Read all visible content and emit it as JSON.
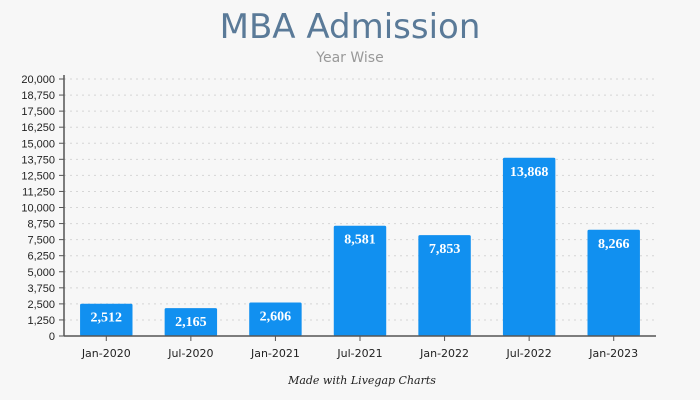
{
  "chart_data": {
    "type": "bar",
    "title": "MBA Admission",
    "subtitle": "Year Wise",
    "categories": [
      "Jan-2020",
      "Jul-2020",
      "Jan-2021",
      "Jul-2021",
      "Jan-2022",
      "Jul-2022",
      "Jan-2023"
    ],
    "values": [
      2512,
      2165,
      2606,
      8581,
      7853,
      13868,
      8266
    ],
    "value_labels": [
      "2,512",
      "2,165",
      "2,606",
      "8,581",
      "7,853",
      "13,868",
      "8,266"
    ],
    "yticks": [
      "0",
      "1,250",
      "2,500",
      "3,750",
      "5,000",
      "6,250",
      "7,500",
      "8,750",
      "10,000",
      "11,250",
      "12,500",
      "13,750",
      "15,000",
      "16,250",
      "17,500",
      "18,750",
      "20,000"
    ],
    "ylim": [
      0,
      20000
    ],
    "xlabel": "",
    "ylabel": "",
    "grid": true,
    "bar_color": "#1190f0",
    "footer": "Made with Livegap Charts"
  }
}
